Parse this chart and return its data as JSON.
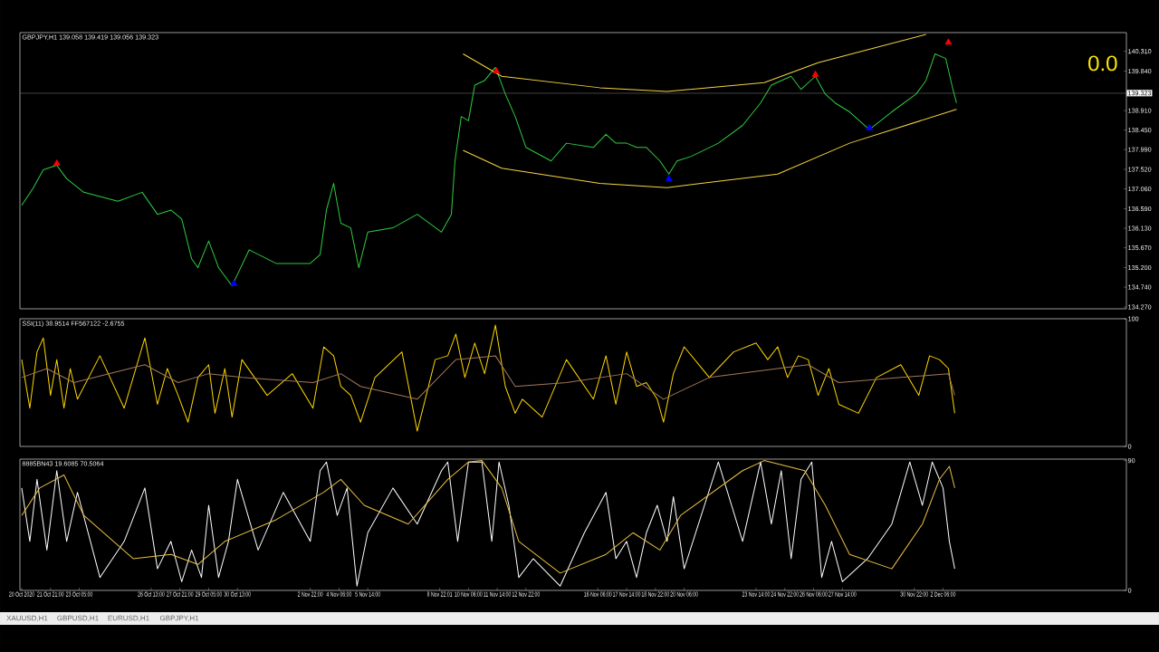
{
  "chart_data": [
    {
      "type": "line",
      "title": "GBPJPY,H1  139.058 139.419 139.056 139.323",
      "annotations": [
        "0.0"
      ],
      "xlim": [
        "2020-10-20T11:00",
        "2020-12-10T18:00"
      ],
      "ylim": [
        134.228,
        140.752
      ],
      "tick_labels": "y",
      "yticks": [
        {
          "value": 134.27,
          "label": "134.270"
        },
        {
          "value": 134.74,
          "label": "134.740"
        },
        {
          "value": 135.2,
          "label": "135.200"
        },
        {
          "value": 135.67,
          "label": "135.670"
        },
        {
          "value": 136.13,
          "label": "136.130"
        },
        {
          "value": 136.59,
          "label": "136.590"
        },
        {
          "value": 137.06,
          "label": "137.060"
        },
        {
          "value": 137.52,
          "label": "137.520"
        },
        {
          "value": 137.99,
          "label": "137.990"
        },
        {
          "value": 138.45,
          "label": "138.450"
        },
        {
          "value": 138.91,
          "label": "138.910"
        },
        {
          "value": 139.84,
          "label": "139.840"
        },
        {
          "value": 140.31,
          "label": "140.310"
        }
      ],
      "ref_lines": [
        {
          "axis": "y",
          "value": 139.323,
          "label": "139.323",
          "color": "#808080"
        }
      ],
      "series": [
        {
          "type": "line",
          "color": "#2ecc40",
          "marker": "none",
          "x": [
            "2020-10-20T13:00",
            "2020-10-21T02:00",
            "2020-10-21T13:00",
            "2020-10-22T04:00",
            "2020-10-22T15:00",
            "2020-10-23T10:00",
            "2020-10-25T00:00",
            "2020-10-26T03:00",
            "2020-10-26T20:00",
            "2020-10-27T11:00",
            "2020-10-27T23:00",
            "2020-10-28T10:00",
            "2020-10-28T17:00",
            "2020-10-29T05:00",
            "2020-10-29T16:00",
            "2020-10-30T07:00",
            "2020-10-31T02:00",
            "2020-11-01T08:00",
            "2020-11-02T22:00",
            "2020-11-03T09:00",
            "2020-11-03T16:00",
            "2020-11-04T00:00",
            "2020-11-04T08:00",
            "2020-11-04T19:00",
            "2020-11-05T04:00",
            "2020-11-05T14:00",
            "2020-11-06T18:00",
            "2020-11-07T21:00",
            "2020-11-09T00:00",
            "2020-11-09T11:00",
            "2020-11-09T15:00",
            "2020-11-09T22:00",
            "2020-11-10T06:00",
            "2020-11-10T13:00",
            "2020-11-11T00:00",
            "2020-11-11T12:00",
            "2020-11-11T23:00",
            "2020-11-12T10:00",
            "2020-11-12T22:00",
            "2020-11-14T02:00",
            "2020-11-14T19:00",
            "2020-11-16T01:00",
            "2020-11-16T15:00",
            "2020-11-17T02:00",
            "2020-11-17T14:00",
            "2020-11-18T01:00",
            "2020-11-18T12:00",
            "2020-11-19T03:00",
            "2020-11-19T13:00",
            "2020-11-19T22:00",
            "2020-11-20T14:00",
            "2020-11-21T20:00",
            "2020-11-22T23:00",
            "2020-11-23T19:00",
            "2020-11-24T07:00",
            "2020-11-24T18:00",
            "2020-11-25T05:00",
            "2020-11-25T16:00",
            "2020-11-26T08:00",
            "2020-11-26T19:00",
            "2020-11-27T06:00",
            "2020-11-27T22:00",
            "2020-11-28T20:00",
            "2020-11-29T21:00",
            "2020-12-01T00:00",
            "2020-12-01T11:00",
            "2020-12-01T21:00",
            "2020-12-02T09:00",
            "2020-12-02T17:00",
            "2020-12-02T21:00"
          ],
          "values": [
            136.67,
            137.09,
            137.51,
            137.62,
            137.3,
            136.98,
            136.77,
            136.98,
            136.46,
            136.56,
            136.35,
            135.41,
            135.2,
            135.83,
            135.2,
            134.77,
            135.62,
            135.3,
            135.3,
            135.51,
            136.56,
            137.19,
            136.25,
            136.14,
            135.2,
            136.04,
            136.14,
            136.46,
            136.04,
            136.46,
            137.72,
            138.77,
            138.67,
            139.51,
            139.62,
            139.93,
            139.3,
            138.77,
            138.04,
            137.72,
            138.14,
            138.04,
            138.35,
            138.14,
            138.14,
            138.04,
            138.04,
            137.72,
            137.41,
            137.72,
            137.83,
            138.14,
            138.56,
            139.09,
            139.51,
            139.62,
            139.72,
            139.41,
            139.72,
            139.3,
            139.09,
            138.88,
            138.46,
            138.88,
            139.3,
            139.62,
            140.25,
            140.14,
            139.41,
            139.09
          ]
        },
        {
          "type": "line",
          "color": "#f5d442",
          "marker": "none",
          "x": [
            "2020-11-10T00:00",
            "2020-11-11T19:00",
            "2020-11-16T08:00",
            "2020-11-19T11:00",
            "2020-11-23T23:00",
            "2020-11-26T11:00",
            "2020-12-01T11:00"
          ],
          "values": [
            140.25,
            139.72,
            139.45,
            139.36,
            139.57,
            140.04,
            140.71
          ]
        },
        {
          "type": "line",
          "color": "#f5d442",
          "marker": "none",
          "x": [
            "2020-11-10T00:00",
            "2020-11-11T19:00",
            "2020-11-16T08:00",
            "2020-11-19T11:00",
            "2020-11-24T14:00",
            "2020-11-27T22:00",
            "2020-12-02T21:00"
          ],
          "values": [
            137.97,
            137.55,
            137.19,
            137.09,
            137.41,
            138.14,
            138.94
          ]
        },
        {
          "type": "scatter",
          "color": "#ff0000",
          "marker": "triangle",
          "x": [
            "2020-10-22T04:00",
            "2020-11-11T13:00",
            "2020-11-26T08:00",
            "2020-12-02T12:00"
          ],
          "values": [
            137.66,
            139.84,
            139.76,
            140.52
          ]
        },
        {
          "type": "scatter",
          "color": "#0000ff",
          "marker": "triangle",
          "x": [
            "2020-10-30T09:00",
            "2020-11-19T13:00",
            "2020-11-28T20:00"
          ],
          "values": [
            134.82,
            137.3,
            138.5
          ]
        }
      ]
    },
    {
      "type": "line",
      "title": "SSI(11) 38.9514  FF567122 -2.6755",
      "xlim": [
        "2020-10-20T11:00",
        "2020-12-10T18:00"
      ],
      "ylim": [
        0,
        100
      ],
      "yticks": [
        0,
        100
      ],
      "tick_labels": "y",
      "series": [
        {
          "type": "line",
          "color": "#ffd700",
          "marker": "none",
          "x": [
            "2020-10-20T13:00",
            "2020-10-20T22:00",
            "2020-10-21T06:00",
            "2020-10-21T13:00",
            "2020-10-21T21:00",
            "2020-10-22T04:00",
            "2020-10-22T12:00",
            "2020-10-22T19:00",
            "2020-10-23T03:00",
            "2020-10-24T04:00",
            "2020-10-25T07:00",
            "2020-10-26T06:00",
            "2020-10-26T20:00",
            "2020-10-27T07:00",
            "2020-10-27T19:00",
            "2020-10-28T06:00",
            "2020-10-28T17:00",
            "2020-10-29T05:00",
            "2020-10-29T12:00",
            "2020-10-29T23:00",
            "2020-10-30T07:00",
            "2020-10-30T18:00",
            "2020-10-31T22:00",
            "2020-11-02T02:00",
            "2020-11-03T01:00",
            "2020-11-03T13:00",
            "2020-11-04T00:00",
            "2020-11-04T08:00",
            "2020-11-04T19:00",
            "2020-11-05T06:00",
            "2020-11-05T22:00",
            "2020-11-07T04:00",
            "2020-11-07T21:00",
            "2020-11-08T17:00",
            "2020-11-09T07:00",
            "2020-11-09T16:00",
            "2020-11-10T02:00",
            "2020-11-10T13:00",
            "2020-11-11T00:00",
            "2020-11-11T12:00",
            "2020-11-11T23:00",
            "2020-11-12T10:00",
            "2020-11-12T18:00",
            "2020-11-13T16:00",
            "2020-11-14T19:00",
            "2020-11-16T01:00",
            "2020-11-16T15:00",
            "2020-11-17T02:00",
            "2020-11-17T14:00",
            "2020-11-18T01:00",
            "2020-11-18T12:00",
            "2020-11-19T00:00",
            "2020-11-19T07:00",
            "2020-11-19T18:00",
            "2020-11-20T06:00",
            "2020-11-21T10:00",
            "2020-11-22T13:00",
            "2020-11-23T14:00",
            "2020-11-24T03:00",
            "2020-11-24T14:00",
            "2020-11-25T01:00",
            "2020-11-25T13:00",
            "2020-11-26T00:00",
            "2020-11-26T11:00",
            "2020-11-26T23:00",
            "2020-11-27T10:00",
            "2020-11-28T08:00",
            "2020-11-29T04:00",
            "2020-11-30T07:00",
            "2020-12-01T03:00",
            "2020-12-01T15:00",
            "2020-12-02T02:00",
            "2020-12-02T12:00",
            "2020-12-02T19:00"
          ],
          "values": [
            68,
            30,
            74,
            85,
            40,
            68,
            30,
            61,
            37,
            71,
            30,
            85,
            33,
            61,
            40,
            19,
            54,
            64,
            26,
            61,
            23,
            68,
            40,
            57,
            30,
            78,
            71,
            47,
            40,
            19,
            54,
            74,
            12,
            68,
            71,
            88,
            54,
            81,
            57,
            95,
            47,
            26,
            37,
            23,
            68,
            37,
            71,
            33,
            74,
            47,
            50,
            37,
            19,
            57,
            78,
            54,
            74,
            81,
            68,
            78,
            54,
            71,
            68,
            40,
            61,
            33,
            26,
            54,
            64,
            40,
            71,
            68,
            61,
            26
          ]
        },
        {
          "type": "line",
          "color": "#a0785a",
          "marker": "none",
          "x": [
            "2020-10-20T13:00",
            "2020-10-21T17:00",
            "2020-10-22T23:00",
            "2020-10-26T06:00",
            "2020-10-27T19:00",
            "2020-10-29T05:00",
            "2020-10-30T18:00",
            "2020-11-03T01:00",
            "2020-11-04T08:00",
            "2020-11-05T06:00",
            "2020-11-07T21:00",
            "2020-11-09T16:00",
            "2020-11-11T12:00",
            "2020-11-12T10:00",
            "2020-11-14T19:00",
            "2020-11-17T14:00",
            "2020-11-19T07:00",
            "2020-11-21T10:00",
            "2020-11-24T14:00",
            "2020-11-26T00:00",
            "2020-11-27T10:00",
            "2020-11-30T07:00",
            "2020-12-02T12:00",
            "2020-12-02T19:00"
          ],
          "values": [
            54,
            61,
            50,
            64,
            50,
            57,
            54,
            50,
            57,
            47,
            37,
            68,
            71,
            47,
            50,
            57,
            37,
            54,
            61,
            64,
            50,
            54,
            57,
            40
          ]
        }
      ]
    },
    {
      "type": "line",
      "title": "8885BN43 19.6085 70.5064",
      "annotations": [
        "XAUUSD,H1",
        "GBPUSD,H1",
        "EURUSD,H1",
        "GBPJPY,H1"
      ],
      "xlim": [
        "2020-10-20T11:00",
        "2020-12-10T18:00"
      ],
      "ylim": [
        0,
        91
      ],
      "yticks": [
        0,
        90
      ],
      "xticks": [
        {
          "value": "2020-10-20T13:00",
          "label": "20 Oct 2020"
        },
        {
          "value": "2020-10-21T21:00",
          "label": "21 Oct 21:00"
        },
        {
          "value": "2020-10-23T05:00",
          "label": "23 Oct 05:00"
        },
        {
          "value": "2020-10-26T13:00",
          "label": "26 Oct 13:00"
        },
        {
          "value": "2020-10-27T21:00",
          "label": "27 Oct 21:00"
        },
        {
          "value": "2020-10-29T05:00",
          "label": "29 Oct 05:00"
        },
        {
          "value": "2020-10-30T13:00",
          "label": "30 Oct 13:00"
        },
        {
          "value": "2020-11-02T22:00",
          "label": "2 Nov 22:00"
        },
        {
          "value": "2020-11-04T06:00",
          "label": "4 Nov 06:00"
        },
        {
          "value": "2020-11-05T14:00",
          "label": "5 Nov 14:00"
        },
        {
          "value": "2020-11-08T22:01",
          "label": "8 Nov 22:01"
        },
        {
          "value": "2020-11-10T06:00",
          "label": "10 Nov 06:00"
        },
        {
          "value": "2020-11-11T14:00",
          "label": "11 Nov 14:00"
        },
        {
          "value": "2020-11-12T22:00",
          "label": "12 Nov 22:00"
        },
        {
          "value": "2020-11-16T06:00",
          "label": "16 Nov 06:00"
        },
        {
          "value": "2020-11-17T14:00",
          "label": "17 Nov 14:00"
        },
        {
          "value": "2020-11-18T22:00",
          "label": "18 Nov 22:00"
        },
        {
          "value": "2020-11-20T06:00",
          "label": "20 Nov 06:00"
        },
        {
          "value": "2020-11-23T14:00",
          "label": "23 Nov 14:00"
        },
        {
          "value": "2020-11-24T22:00",
          "label": "24 Nov 22:00"
        },
        {
          "value": "2020-11-26T06:00",
          "label": "26 Nov 06:00"
        },
        {
          "value": "2020-11-27T14:00",
          "label": "27 Nov 14:00"
        },
        {
          "value": "2020-11-30T22:00",
          "label": "30 Nov 22:00"
        },
        {
          "value": "2020-12-02T06:00",
          "label": "2 Dec 06:00"
        }
      ],
      "series": [
        {
          "type": "line",
          "color": "#ffffff",
          "marker": "none",
          "x": [
            "2020-10-20T13:00",
            "2020-10-20T22:00",
            "2020-10-21T06:00",
            "2020-10-21T17:00",
            "2020-10-22T04:00",
            "2020-10-22T15:00",
            "2020-10-23T03:00",
            "2020-10-24T04:00",
            "2020-10-25T07:00",
            "2020-10-26T06:00",
            "2020-10-26T20:00",
            "2020-10-27T11:00",
            "2020-10-27T23:00",
            "2020-10-28T10:00",
            "2020-10-28T21:00",
            "2020-10-29T05:00",
            "2020-10-29T16:00",
            "2020-10-30T03:00",
            "2020-10-30T13:00",
            "2020-10-31T12:00",
            "2020-11-01T16:00",
            "2020-11-02T22:00",
            "2020-11-03T09:00",
            "2020-11-03T16:00",
            "2020-11-04T04:00",
            "2020-11-04T15:00",
            "2020-11-05T02:00",
            "2020-11-05T14:00",
            "2020-11-06T18:00",
            "2020-11-07T21:00",
            "2020-11-09T00:00",
            "2020-11-09T07:00",
            "2020-11-09T18:00",
            "2020-11-10T06:00",
            "2020-11-10T21:00",
            "2020-11-11T08:00",
            "2020-11-11T16:00",
            "2020-11-12T03:00",
            "2020-11-12T14:00",
            "2020-11-13T06:00",
            "2020-11-14T12:00",
            "2020-11-15T15:00",
            "2020-11-16T15:00",
            "2020-11-17T02:00",
            "2020-11-17T14:00",
            "2020-11-18T01:00",
            "2020-11-18T12:00",
            "2020-11-19T00:00",
            "2020-11-19T11:00",
            "2020-11-19T18:00",
            "2020-11-20T06:00",
            "2020-11-21T20:00",
            "2020-11-22T23:00",
            "2020-11-23T19:00",
            "2020-11-24T07:00",
            "2020-11-24T18:00",
            "2020-11-25T05:00",
            "2020-11-25T16:00",
            "2020-11-26T04:00",
            "2020-11-26T15:00",
            "2020-11-27T02:00",
            "2020-11-27T14:00",
            "2020-11-28T18:00",
            "2020-11-29T21:00",
            "2020-11-30T17:00",
            "2020-12-01T07:00",
            "2020-12-01T18:00",
            "2020-12-02T06:00",
            "2020-12-02T13:00",
            "2020-12-02T19:00"
          ],
          "values": [
            71,
            34,
            77,
            28,
            83,
            34,
            68,
            9,
            34,
            71,
            15,
            34,
            6,
            28,
            9,
            59,
            9,
            34,
            77,
            28,
            68,
            34,
            83,
            89,
            52,
            71,
            3,
            40,
            71,
            46,
            83,
            89,
            34,
            89,
            89,
            34,
            89,
            59,
            9,
            22,
            3,
            40,
            68,
            22,
            34,
            9,
            40,
            59,
            34,
            65,
            15,
            89,
            34,
            89,
            46,
            83,
            22,
            77,
            89,
            9,
            34,
            6,
            22,
            46,
            89,
            59,
            89,
            71,
            34,
            15
          ]
        },
        {
          "type": "line",
          "color": "#e8c040",
          "marker": "none",
          "x": [
            "2020-10-20T13:00",
            "2020-10-21T09:00",
            "2020-10-22T12:00",
            "2020-10-23T10:00",
            "2020-10-25T17:00",
            "2020-10-27T11:00",
            "2020-10-28T17:00",
            "2020-10-29T23:00",
            "2020-11-01T08:00",
            "2020-11-03T13:00",
            "2020-11-04T08:00",
            "2020-11-05T10:00",
            "2020-11-07T11:00",
            "2020-11-09T07:00",
            "2020-11-10T06:00",
            "2020-11-10T21:00",
            "2020-11-11T19:00",
            "2020-11-12T14:00",
            "2020-11-14T12:00",
            "2020-11-16T15:00",
            "2020-11-17T21:00",
            "2020-11-19T03:00",
            "2020-11-20T02:00",
            "2020-11-22T23:00",
            "2020-11-23T23:00",
            "2020-11-25T20:00",
            "2020-11-26T19:00",
            "2020-11-27T22:00",
            "2020-11-29T21:00",
            "2020-12-01T07:00",
            "2020-12-02T02:00",
            "2020-12-02T13:00",
            "2020-12-02T19:00"
          ],
          "values": [
            52,
            71,
            80,
            52,
            22,
            25,
            18,
            34,
            49,
            68,
            77,
            59,
            46,
            77,
            89,
            90,
            71,
            34,
            12,
            25,
            40,
            28,
            52,
            83,
            90,
            83,
            59,
            25,
            15,
            46,
            77,
            86,
            71
          ]
        }
      ]
    }
  ]
}
